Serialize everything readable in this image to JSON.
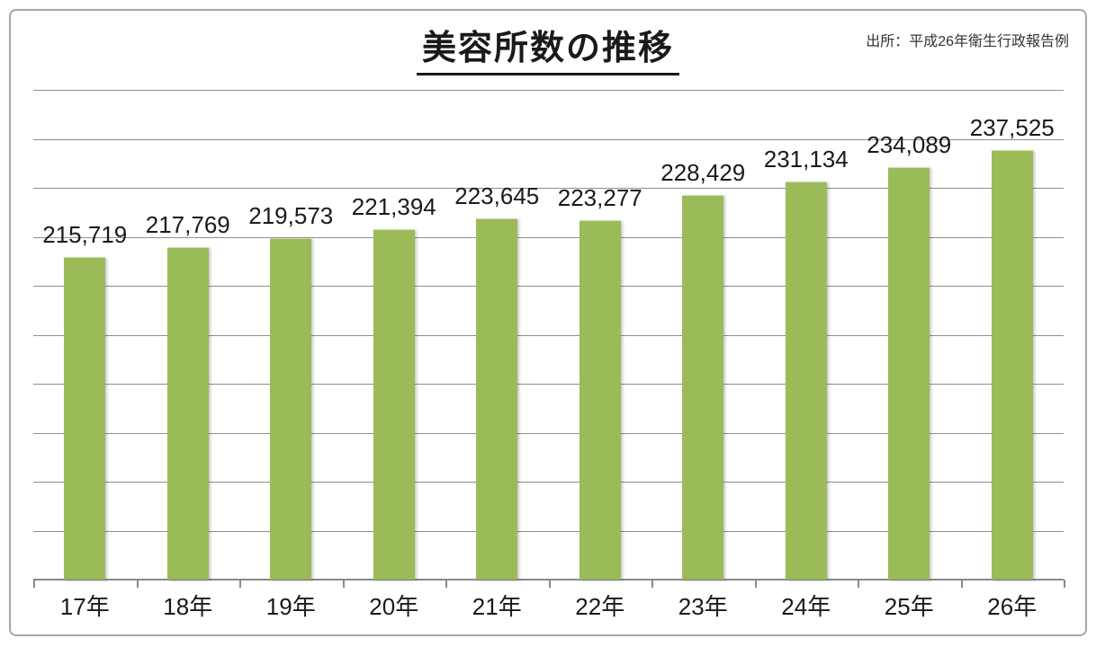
{
  "title": "美容所数の推移",
  "source_note": "出所：平成26年衛生行政報告例",
  "chart_data": {
    "type": "bar",
    "title": "美容所数の推移",
    "categories": [
      "17年",
      "18年",
      "19年",
      "20年",
      "21年",
      "22年",
      "23年",
      "24年",
      "25年",
      "26年"
    ],
    "values": [
      215719,
      217769,
      219573,
      221394,
      223645,
      223277,
      228429,
      231134,
      234089,
      237525
    ],
    "value_labels": [
      "215,719",
      "217,769",
      "219,573",
      "221,394",
      "223,645",
      "223,277",
      "228,429",
      "231,134",
      "234,089",
      "237,525"
    ],
    "xlabel": "",
    "ylabel": "",
    "ylim": [
      150000,
      250000
    ],
    "gridline_interval": 10000,
    "grid": true,
    "legend": "none",
    "bar_color": "#9bbb59",
    "gridline_color": "#8f8f8f",
    "axis_color": "#898989",
    "label_color": "#1a1a1a"
  }
}
